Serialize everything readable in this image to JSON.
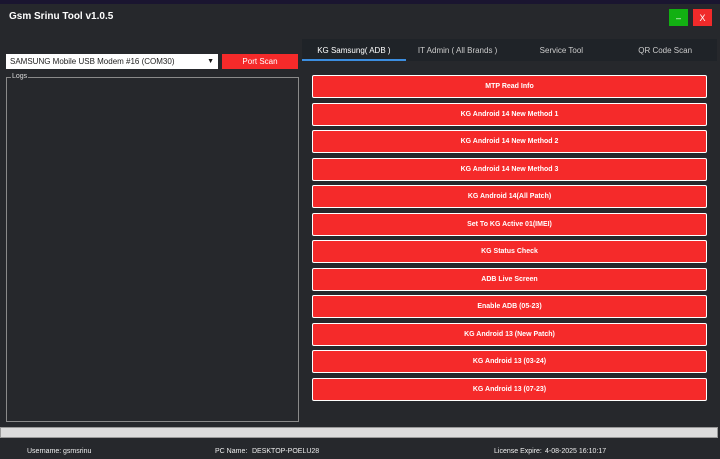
{
  "window": {
    "title": "Gsm Srinu Tool  v1.0.5",
    "minimize": "–",
    "close": "X"
  },
  "port": {
    "selected": "SAMSUNG Mobile USB Modem #16 (COM30)",
    "scan_label": "Port Scan"
  },
  "logs": {
    "label": "Logs"
  },
  "tabs": [
    {
      "label": "KG Samsung( ADB )",
      "active": true
    },
    {
      "label": "IT Admin ( All Brands )"
    },
    {
      "label": "Service Tool"
    },
    {
      "label": "QR Code Scan"
    }
  ],
  "buttons": [
    "MTP Read Info",
    "KG Android 14 New Method 1",
    "KG Android 14 New Method 2",
    "KG Android 14 New Method 3",
    "KG Android 14(All Patch)",
    "Set To KG Active 01(IMEI)",
    "KG Status Check",
    "ADB Live Screen",
    "Enable ADB (05-23)",
    "KG Android 13 (New Patch)",
    "KG Android 13 (03-24)",
    "KG Android 13 (07-23)"
  ],
  "status": {
    "username_label": "Username:",
    "username": "gsmsrinu",
    "pc_label": "PC Name:",
    "pc": "DESKTOP-POELU28",
    "license_label": "License Expire:",
    "license": "4-08-2025  16:10:17"
  },
  "colors": {
    "accent_red": "#f52a2a",
    "min_green": "#12b012",
    "tab_underline": "#3c8ee0",
    "background": "#26282c"
  }
}
